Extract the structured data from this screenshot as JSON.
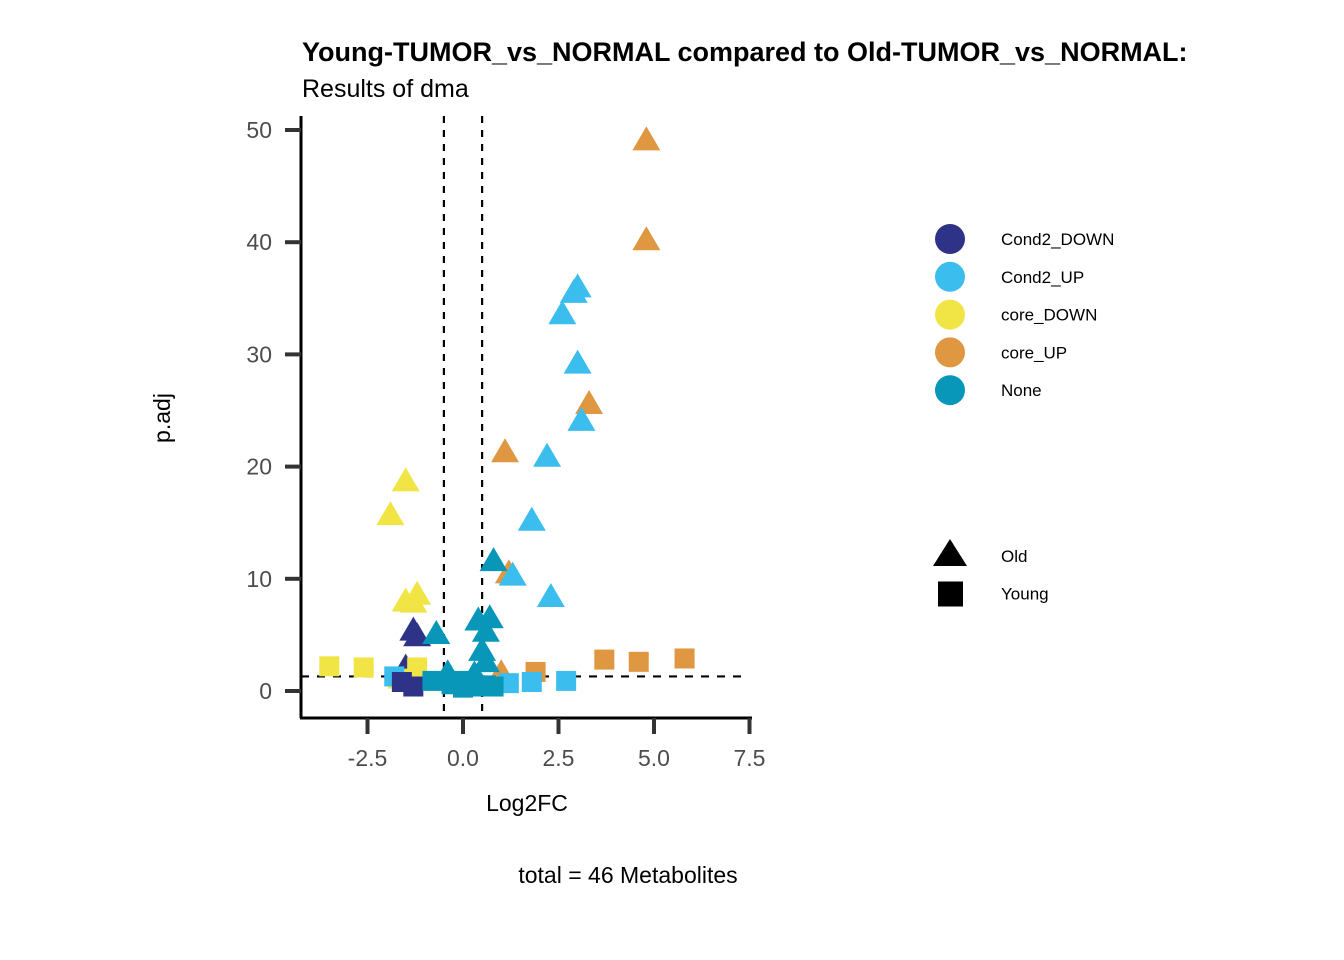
{
  "chart_data": {
    "type": "scatter",
    "title": "Young-TUMOR_vs_NORMAL compared to Old-TUMOR_vs_NORMAL:",
    "subtitle": "Results of dma",
    "xlabel": "Log2FC",
    "ylabel": "p.adj",
    "caption": "total = 46 Metabolites",
    "xlim": [
      -4.3,
      7.5
    ],
    "ylim": [
      -2.3,
      51.3
    ],
    "xticks": [
      -2.5,
      0.0,
      2.5,
      5.0,
      7.5
    ],
    "xtick_labels": [
      "-2.5",
      "0.0",
      "2.5",
      "5.0",
      "7.5"
    ],
    "yticks": [
      0,
      10,
      20,
      30,
      40,
      50
    ],
    "ytick_labels": [
      "0",
      "10",
      "20",
      "30",
      "40",
      "50"
    ],
    "grid": false,
    "reference_lines": {
      "vertical": [
        -0.5,
        0.5
      ],
      "horizontal": [
        1.3
      ]
    },
    "legend_color": {
      "placement": "right",
      "entries": [
        {
          "name": "Cond2_DOWN",
          "color": "#2e3388"
        },
        {
          "name": "Cond2_UP",
          "color": "#3bbeee"
        },
        {
          "name": "core_DOWN",
          "color": "#f1e546"
        },
        {
          "name": "core_UP",
          "color": "#df9741"
        },
        {
          "name": "None",
          "color": "#0897b9"
        }
      ]
    },
    "legend_shape": {
      "placement": "right",
      "entries": [
        {
          "name": "Old",
          "shape": "triangle"
        },
        {
          "name": "Young",
          "shape": "square"
        }
      ]
    },
    "points": [
      {
        "x": 4.8,
        "y": 49.0,
        "group": "core_UP",
        "shape": "Old"
      },
      {
        "x": 4.8,
        "y": 40.1,
        "group": "core_UP",
        "shape": "Old"
      },
      {
        "x": 3.3,
        "y": 25.5,
        "group": "core_UP",
        "shape": "Old"
      },
      {
        "x": 1.1,
        "y": 21.2,
        "group": "core_UP",
        "shape": "Old"
      },
      {
        "x": 1.2,
        "y": 10.4,
        "group": "core_UP",
        "shape": "Old"
      },
      {
        "x": 1.0,
        "y": 1.5,
        "group": "core_UP",
        "shape": "Old"
      },
      {
        "x": 3.0,
        "y": 35.9,
        "group": "Cond2_UP",
        "shape": "Old"
      },
      {
        "x": 2.9,
        "y": 35.4,
        "group": "Cond2_UP",
        "shape": "Old"
      },
      {
        "x": 2.6,
        "y": 33.5,
        "group": "Cond2_UP",
        "shape": "Old"
      },
      {
        "x": 3.0,
        "y": 29.1,
        "group": "Cond2_UP",
        "shape": "Old"
      },
      {
        "x": 3.1,
        "y": 24.0,
        "group": "Cond2_UP",
        "shape": "Old"
      },
      {
        "x": 2.2,
        "y": 20.8,
        "group": "Cond2_UP",
        "shape": "Old"
      },
      {
        "x": 1.8,
        "y": 15.1,
        "group": "Cond2_UP",
        "shape": "Old"
      },
      {
        "x": 1.3,
        "y": 10.2,
        "group": "Cond2_UP",
        "shape": "Old"
      },
      {
        "x": 2.3,
        "y": 8.3,
        "group": "Cond2_UP",
        "shape": "Old"
      },
      {
        "x": -1.5,
        "y": 18.6,
        "group": "core_DOWN",
        "shape": "Old"
      },
      {
        "x": -1.9,
        "y": 15.6,
        "group": "core_DOWN",
        "shape": "Old"
      },
      {
        "x": -1.5,
        "y": 7.9,
        "group": "core_DOWN",
        "shape": "Old"
      },
      {
        "x": -1.2,
        "y": 8.5,
        "group": "core_DOWN",
        "shape": "Old"
      },
      {
        "x": -1.3,
        "y": 7.8,
        "group": "core_DOWN",
        "shape": "Old"
      },
      {
        "x": -1.3,
        "y": 5.3,
        "group": "Cond2_DOWN",
        "shape": "Old"
      },
      {
        "x": -1.2,
        "y": 4.8,
        "group": "Cond2_DOWN",
        "shape": "Old"
      },
      {
        "x": -1.5,
        "y": 2.0,
        "group": "Cond2_DOWN",
        "shape": "Old"
      },
      {
        "x": 0.8,
        "y": 11.5,
        "group": "None",
        "shape": "Old"
      },
      {
        "x": -0.7,
        "y": 5.0,
        "group": "None",
        "shape": "Old"
      },
      {
        "x": 0.4,
        "y": 6.2,
        "group": "None",
        "shape": "Old"
      },
      {
        "x": 0.7,
        "y": 6.4,
        "group": "None",
        "shape": "Old"
      },
      {
        "x": 0.6,
        "y": 5.2,
        "group": "None",
        "shape": "Old"
      },
      {
        "x": 0.5,
        "y": 3.5,
        "group": "None",
        "shape": "Old"
      },
      {
        "x": 0.6,
        "y": 2.5,
        "group": "None",
        "shape": "Old"
      },
      {
        "x": -0.4,
        "y": 1.5,
        "group": "None",
        "shape": "Old"
      },
      {
        "x": 0.3,
        "y": 1.4,
        "group": "None",
        "shape": "Old"
      },
      {
        "x": -3.5,
        "y": 2.2,
        "group": "core_DOWN",
        "shape": "Young"
      },
      {
        "x": -2.6,
        "y": 2.1,
        "group": "core_DOWN",
        "shape": "Young"
      },
      {
        "x": -1.2,
        "y": 2.1,
        "group": "core_DOWN",
        "shape": "Young"
      },
      {
        "x": -1.7,
        "y": 1.1,
        "group": "core_DOWN",
        "shape": "Young"
      },
      {
        "x": 3.7,
        "y": 2.8,
        "group": "core_UP",
        "shape": "Young"
      },
      {
        "x": 4.6,
        "y": 2.6,
        "group": "core_UP",
        "shape": "Young"
      },
      {
        "x": 5.8,
        "y": 2.9,
        "group": "core_UP",
        "shape": "Young"
      },
      {
        "x": 1.9,
        "y": 1.7,
        "group": "core_UP",
        "shape": "Young"
      },
      {
        "x": 1.8,
        "y": 0.8,
        "group": "Cond2_UP",
        "shape": "Young"
      },
      {
        "x": 2.7,
        "y": 0.9,
        "group": "Cond2_UP",
        "shape": "Young"
      },
      {
        "x": 1.2,
        "y": 0.7,
        "group": "Cond2_UP",
        "shape": "Young"
      },
      {
        "x": -1.8,
        "y": 1.3,
        "group": "Cond2_UP",
        "shape": "Young"
      },
      {
        "x": -1.3,
        "y": 0.4,
        "group": "Cond2_DOWN",
        "shape": "Young"
      },
      {
        "x": -1.6,
        "y": 0.8,
        "group": "Cond2_DOWN",
        "shape": "Young"
      },
      {
        "x": -0.8,
        "y": 0.9,
        "group": "None",
        "shape": "Young"
      },
      {
        "x": -0.3,
        "y": 0.6,
        "group": "None",
        "shape": "Young"
      },
      {
        "x": 0.0,
        "y": 0.3,
        "group": "None",
        "shape": "Young"
      },
      {
        "x": 0.3,
        "y": 0.4,
        "group": "None",
        "shape": "Young"
      },
      {
        "x": 0.6,
        "y": 0.5,
        "group": "None",
        "shape": "Young"
      },
      {
        "x": 0.8,
        "y": 0.4,
        "group": "None",
        "shape": "Young"
      },
      {
        "x": -0.1,
        "y": 0.9,
        "group": "None",
        "shape": "Young"
      }
    ]
  }
}
